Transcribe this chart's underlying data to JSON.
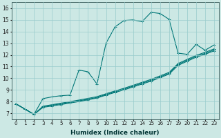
{
  "xlabel": "Humidex (Indice chaleur)",
  "bg_color": "#cce8e4",
  "grid_color": "#99cccc",
  "line_color": "#007777",
  "ylim": [
    6.5,
    16.5
  ],
  "yticks": [
    7,
    8,
    9,
    10,
    11,
    12,
    13,
    14,
    15,
    16
  ],
  "xtick_labels": [
    "0",
    "1",
    "2",
    "3",
    "4",
    "5",
    "6",
    "7",
    "8",
    "9",
    "10",
    "11",
    "12",
    "13",
    "14",
    "15",
    "16",
    "17",
    "19",
    "20",
    "21",
    "22",
    "23"
  ],
  "main_curve_y": [
    7.8,
    7.35,
    6.9,
    8.25,
    8.4,
    8.5,
    8.55,
    10.7,
    10.55,
    9.5,
    13.0,
    14.4,
    14.95,
    15.0,
    14.85,
    15.65,
    15.55,
    15.05,
    12.15,
    12.05,
    12.9,
    12.4,
    12.85
  ],
  "linear1_y": [
    7.8,
    7.35,
    6.9,
    7.5,
    7.62,
    7.74,
    7.87,
    8.0,
    8.15,
    8.3,
    8.55,
    8.78,
    9.0,
    9.25,
    9.5,
    9.75,
    10.05,
    10.35,
    11.1,
    11.45,
    11.8,
    12.05,
    12.35
  ],
  "linear2_y": [
    7.8,
    7.35,
    6.9,
    7.55,
    7.68,
    7.8,
    7.93,
    8.06,
    8.2,
    8.35,
    8.6,
    8.84,
    9.07,
    9.32,
    9.57,
    9.82,
    10.12,
    10.42,
    11.18,
    11.53,
    11.88,
    12.13,
    12.43
  ],
  "linear3_y": [
    7.8,
    7.35,
    6.9,
    7.6,
    7.73,
    7.86,
    7.99,
    8.13,
    8.27,
    8.42,
    8.67,
    8.91,
    9.14,
    9.39,
    9.65,
    9.9,
    10.2,
    10.5,
    11.26,
    11.61,
    11.96,
    12.22,
    12.52
  ]
}
